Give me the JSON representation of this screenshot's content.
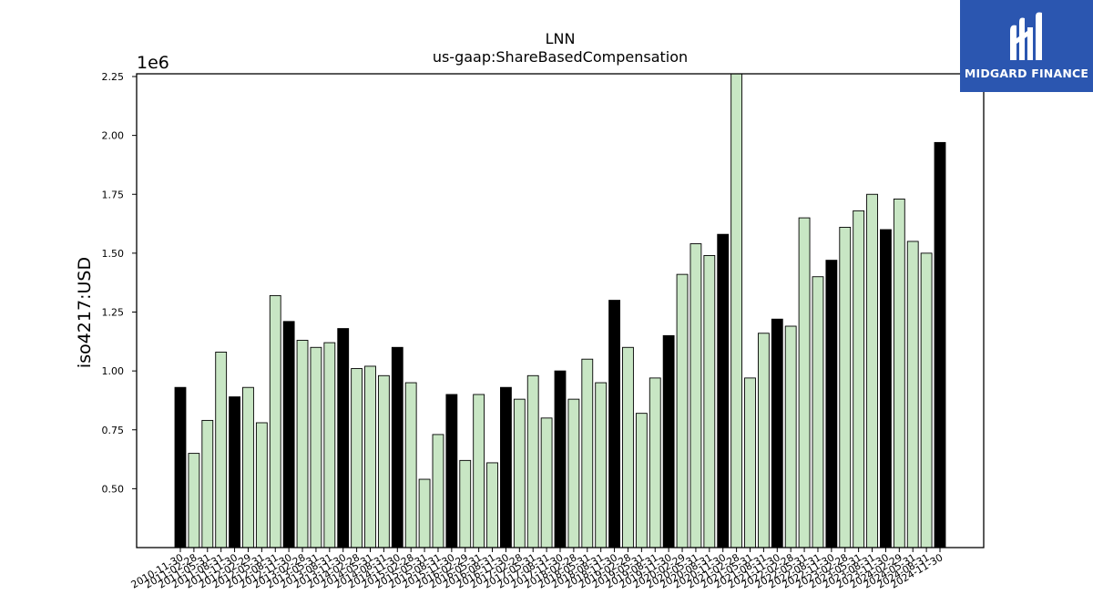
{
  "brand": {
    "name": "MIDGARD FINANCE",
    "logo_icon": "midgard-m-logo-icon",
    "background": "#2b56b0"
  },
  "chart_data": {
    "type": "bar",
    "title": "LNN",
    "subtitle": "us-gaap:ShareBasedCompensation",
    "ylabel": "iso4217:USD",
    "xlabel": "",
    "y_multiplier": "1e6",
    "ylim": [
      0.25,
      2.25
    ],
    "yticks": [
      "0.50",
      "0.75",
      "1.00",
      "1.25",
      "1.50",
      "1.75",
      "2.00",
      "2.25"
    ],
    "colors": {
      "annual": "#000000",
      "quarterly": "#c8e6c4",
      "edge": "#000000"
    },
    "categories": [
      "2010-11-30",
      "2011-02-28",
      "2011-05-31",
      "2011-08-31",
      "2011-11-30",
      "2012-02-29",
      "2012-05-31",
      "2012-08-31",
      "2012-11-30",
      "2013-02-28",
      "2013-05-31",
      "2013-08-31",
      "2013-11-30",
      "2014-02-28",
      "2014-05-31",
      "2014-08-31",
      "2014-11-30",
      "2015-02-28",
      "2015-05-31",
      "2015-08-31",
      "2015-11-30",
      "2016-02-29",
      "2016-05-31",
      "2016-08-31",
      "2016-11-30",
      "2017-02-28",
      "2017-05-31",
      "2017-08-31",
      "2017-11-30",
      "2018-02-28",
      "2018-05-31",
      "2018-08-31",
      "2018-11-30",
      "2019-02-28",
      "2019-05-31",
      "2019-08-31",
      "2019-11-30",
      "2020-02-29",
      "2020-05-31",
      "2020-08-31",
      "2020-11-30",
      "2021-02-28",
      "2021-05-31",
      "2021-08-31",
      "2021-11-30",
      "2022-02-28",
      "2022-05-31",
      "2022-08-31",
      "2022-11-30",
      "2023-02-28",
      "2023-05-31",
      "2023-08-31",
      "2023-11-30",
      "2024-02-29",
      "2024-05-31",
      "2024-08-31",
      "2024-11-30"
    ],
    "values": [
      0.93,
      0.65,
      0.79,
      1.08,
      0.89,
      0.93,
      0.78,
      1.32,
      1.21,
      1.13,
      1.1,
      1.12,
      1.18,
      1.01,
      1.02,
      0.98,
      1.1,
      0.95,
      0.54,
      0.73,
      0.9,
      0.62,
      0.9,
      0.61,
      0.93,
      0.88,
      0.98,
      0.8,
      1.0,
      0.88,
      1.05,
      0.95,
      1.3,
      1.1,
      0.82,
      0.97,
      1.15,
      1.41,
      1.54,
      1.49,
      1.58,
      2.27,
      0.97,
      1.16,
      1.22,
      1.19,
      1.65,
      1.4,
      1.47,
      1.61,
      1.68,
      1.75,
      1.6,
      1.73,
      1.55,
      1.5,
      1.97
    ],
    "annual_flags": [
      true,
      false,
      false,
      false,
      true,
      false,
      false,
      false,
      true,
      false,
      false,
      false,
      true,
      false,
      false,
      false,
      true,
      false,
      false,
      false,
      true,
      false,
      false,
      false,
      true,
      false,
      false,
      false,
      true,
      false,
      false,
      false,
      true,
      false,
      false,
      false,
      true,
      false,
      false,
      false,
      true,
      false,
      false,
      false,
      true,
      false,
      false,
      false,
      true,
      false,
      false,
      false,
      true,
      false,
      false,
      false,
      true
    ]
  }
}
